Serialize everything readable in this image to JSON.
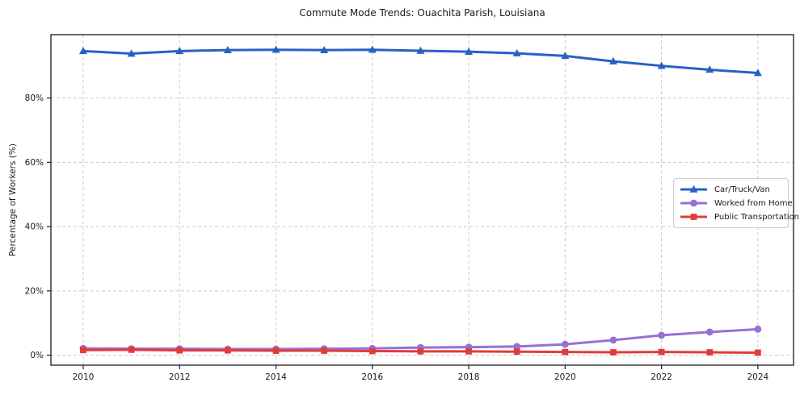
{
  "chart_data": {
    "type": "line",
    "title": "Commute Mode Trends: Ouachita Parish, Louisiana",
    "xlabel": "",
    "ylabel": "Percentage of Workers (%)",
    "x": [
      2010,
      2011,
      2012,
      2013,
      2014,
      2015,
      2016,
      2017,
      2018,
      2019,
      2020,
      2021,
      2022,
      2023,
      2024
    ],
    "series": [
      {
        "name": "Car/Truck/Van",
        "color": "#2761c3",
        "marker": "triangle",
        "values": [
          94.6,
          93.8,
          94.6,
          94.9,
          95.0,
          94.9,
          95.0,
          94.7,
          94.4,
          93.9,
          93.1,
          91.4,
          90.0,
          88.8,
          87.8
        ]
      },
      {
        "name": "Worked from Home",
        "color": "#9770d4",
        "marker": "circle",
        "values": [
          2.1,
          2.0,
          2.0,
          1.9,
          1.9,
          2.0,
          2.1,
          2.4,
          2.5,
          2.7,
          3.4,
          4.7,
          6.2,
          7.2,
          8.1
        ]
      },
      {
        "name": "Public Transportation",
        "color": "#e23b3b",
        "marker": "square",
        "values": [
          1.6,
          1.7,
          1.5,
          1.5,
          1.4,
          1.4,
          1.3,
          1.2,
          1.2,
          1.1,
          1.0,
          0.9,
          1.0,
          0.9,
          0.8
        ]
      }
    ],
    "x_ticks": [
      2010,
      2012,
      2014,
      2016,
      2018,
      2020,
      2022,
      2024
    ],
    "x_tick_labels": [
      "2010",
      "2012",
      "2014",
      "2016",
      "2018",
      "2020",
      "2022",
      "2024"
    ],
    "y_ticks": [
      0,
      20,
      40,
      60,
      80
    ],
    "y_tick_labels": [
      "0%",
      "20%",
      "40%",
      "60%",
      "80%"
    ],
    "xlim": [
      2009.33,
      2024.74
    ],
    "ylim": [
      -3.1,
      99.7
    ],
    "grid": true,
    "legend_position": "center-right"
  },
  "colors": {
    "background": "#ffffff",
    "grid": "#cccccc",
    "spine": "#1a1a1a",
    "text": "#1a1a1a",
    "legend_border": "#cccccc"
  }
}
